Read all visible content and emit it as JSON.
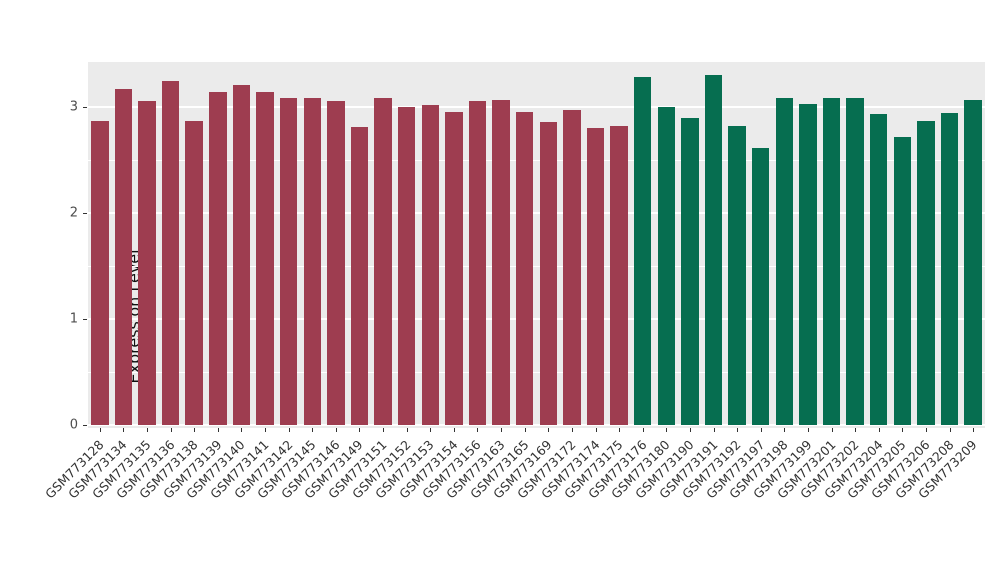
{
  "chart_data": {
    "type": "bar",
    "title": "",
    "xlabel": "",
    "ylabel": "Expression Level",
    "ylim": [
      0,
      3.42
    ],
    "y_ticks": [
      0,
      1,
      2,
      3
    ],
    "y_minor_ticks": [
      0.5,
      1.5,
      2.5
    ],
    "grid": true,
    "legend": "none",
    "panel_background": "#EBEBEB",
    "gridline_color": "#FFFFFF",
    "group_colors": {
      "group1": "#9E3D50",
      "group2": "#066E50"
    },
    "categories": [
      "GSM773128",
      "GSM773134",
      "GSM773135",
      "GSM773136",
      "GSM773138",
      "GSM773139",
      "GSM773140",
      "GSM773141",
      "GSM773142",
      "GSM773145",
      "GSM773146",
      "GSM773149",
      "GSM773151",
      "GSM773152",
      "GSM773153",
      "GSM773154",
      "GSM773156",
      "GSM773163",
      "GSM773165",
      "GSM773169",
      "GSM773172",
      "GSM773174",
      "GSM773175",
      "GSM773176",
      "GSM773180",
      "GSM773190",
      "GSM773191",
      "GSM773192",
      "GSM773197",
      "GSM773198",
      "GSM773199",
      "GSM773201",
      "GSM773202",
      "GSM773204",
      "GSM773205",
      "GSM773206",
      "GSM773208",
      "GSM773209"
    ],
    "values": [
      2.86,
      3.17,
      3.05,
      3.24,
      2.86,
      3.14,
      3.2,
      3.14,
      3.08,
      3.08,
      3.05,
      2.81,
      3.08,
      3.0,
      3.01,
      2.95,
      3.05,
      3.06,
      2.95,
      2.85,
      2.97,
      2.8,
      2.82,
      3.28,
      3.0,
      2.89,
      3.3,
      2.82,
      2.61,
      3.08,
      3.02,
      3.08,
      3.08,
      2.93,
      2.71,
      2.86,
      2.94,
      3.06
    ],
    "groups": [
      "group1",
      "group1",
      "group1",
      "group1",
      "group1",
      "group1",
      "group1",
      "group1",
      "group1",
      "group1",
      "group1",
      "group1",
      "group1",
      "group1",
      "group1",
      "group1",
      "group1",
      "group1",
      "group1",
      "group1",
      "group1",
      "group1",
      "group1",
      "group2",
      "group2",
      "group2",
      "group2",
      "group2",
      "group2",
      "group2",
      "group2",
      "group2",
      "group2",
      "group2",
      "group2",
      "group2",
      "group2",
      "group2"
    ]
  }
}
